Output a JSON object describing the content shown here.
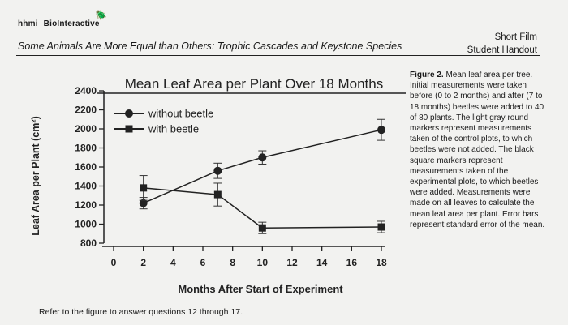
{
  "header": {
    "brand_prefix": "hhmi",
    "brand_name": "BioInteractive",
    "doc_title": "Some Animals Are More Equal than Others: Trophic Cascades and Keystone Species",
    "doc_type_line1": "Short Film",
    "doc_type_line2": "Student Handout"
  },
  "caption": {
    "figure_label": "Figure 2.",
    "text": "Mean leaf area per tree. Initial measurements were taken before (0 to 2 months) and after (7 to 18 months) beetles were added to 40 of 80 plants. The light gray round markers represent measurements taken of the control plots, to which beetles were not added. The black square markers represent measurements taken of the experimental plots, to which beetles were added. Measurements were made on all leaves to calculate the mean leaf area per plant. Error bars represent standard error of the mean."
  },
  "footer": {
    "text": "Refer to the figure to answer questions 12 through 17."
  },
  "chart_data": {
    "type": "line",
    "title": "Mean Leaf Area per Plant Over 18 Months",
    "xlabel": "Months After Start of Experiment",
    "ylabel": "Leaf Area per Plant (cm²)",
    "xlim": [
      0,
      18
    ],
    "ylim": [
      800,
      2400
    ],
    "xticks": [
      0,
      2,
      4,
      6,
      8,
      10,
      12,
      14,
      16,
      18
    ],
    "yticks": [
      800,
      1000,
      1200,
      1400,
      1600,
      1800,
      2000,
      2200,
      2400
    ],
    "legend_position": "top-left",
    "grid": false,
    "series": [
      {
        "name": "without beetle",
        "marker": "circle",
        "x": [
          2,
          7,
          10,
          18
        ],
        "y": [
          1220,
          1560,
          1700,
          1990
        ],
        "err": [
          60,
          80,
          70,
          110
        ]
      },
      {
        "name": "with beetle",
        "marker": "square",
        "x": [
          2,
          7,
          10,
          18
        ],
        "y": [
          1380,
          1310,
          960,
          970
        ],
        "err": [
          130,
          120,
          60,
          60
        ]
      }
    ]
  }
}
